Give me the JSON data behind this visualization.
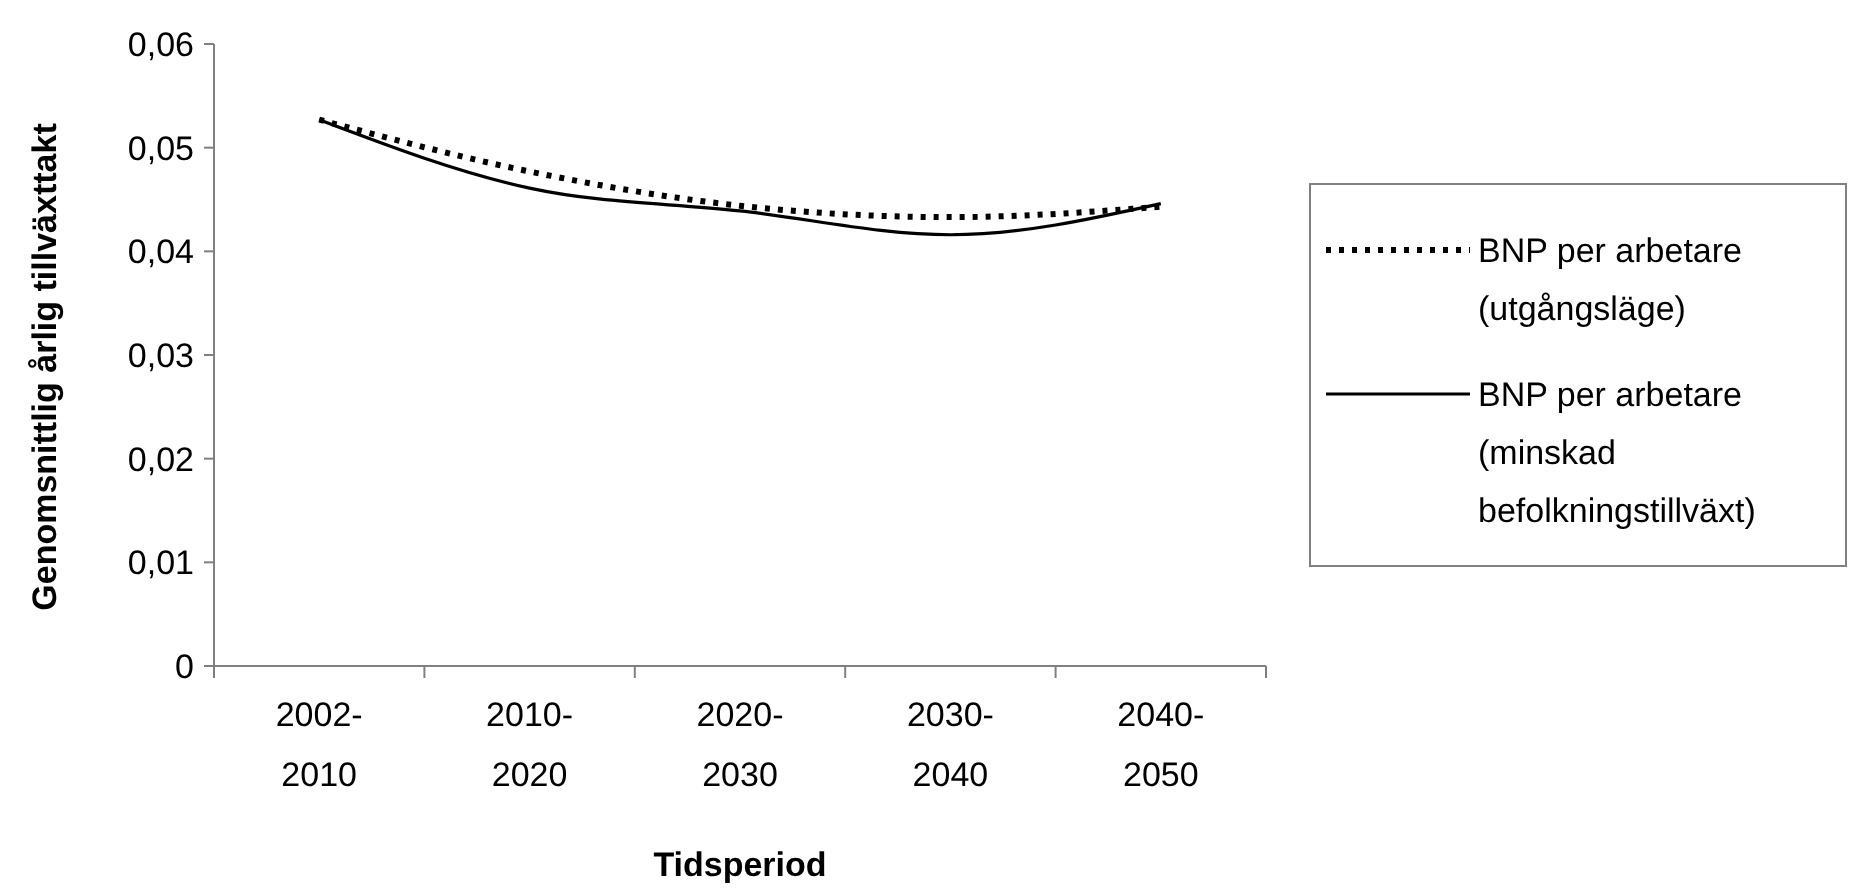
{
  "chart_data": {
    "type": "line",
    "xlabel": "Tidsperiod",
    "ylabel": "Genomsnittlig årlig tillväxttakt",
    "categories": [
      "2002-\n2010",
      "2010-\n2020",
      "2020-\n2030",
      "2030-\n2040",
      "2040-\n2050"
    ],
    "series": [
      {
        "name": "BNP per arbetare (utgångsläge)",
        "color": "#000000",
        "line_style": "dotted",
        "values": [
          0.0527,
          0.0477,
          0.0444,
          0.0433,
          0.0443
        ]
      },
      {
        "name": "BNP per arbetare (minskad befolkningstillväxt)",
        "color": "#000000",
        "line_style": "solid",
        "values": [
          0.0527,
          0.0461,
          0.0439,
          0.0416,
          0.0446
        ]
      }
    ],
    "ylim": [
      0,
      0.06
    ],
    "yticks": [
      0,
      {
        "value": 0.01,
        "label": "0,01"
      },
      {
        "value": 0.02,
        "label": "0,02"
      },
      {
        "value": 0.03,
        "label": "0,03"
      },
      {
        "value": 0.04,
        "label": "0,04"
      },
      {
        "value": 0.05,
        "label": "0,05"
      },
      {
        "value": 0.06,
        "label": "0,06"
      }
    ],
    "grid": false,
    "legend": "right",
    "marker": "none"
  }
}
